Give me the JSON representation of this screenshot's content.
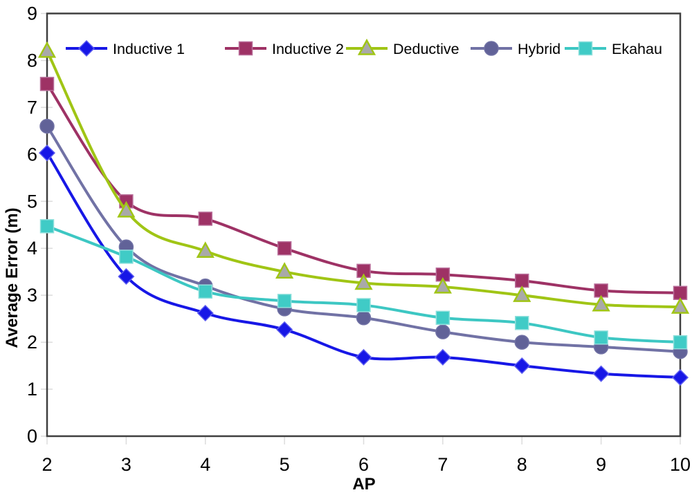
{
  "window": {
    "background": "#FFFFFF"
  },
  "chart_data": {
    "type": "line",
    "title": "",
    "xlabel": "AP",
    "ylabel": "Average Error (m)",
    "x": [
      2,
      3,
      4,
      5,
      6,
      7,
      8,
      9,
      10
    ],
    "xlim": [
      2,
      10
    ],
    "ylim": [
      0,
      9
    ],
    "xticks": [
      2,
      3,
      4,
      5,
      6,
      7,
      8,
      9,
      10
    ],
    "yticks": [
      0,
      1,
      2,
      3,
      4,
      5,
      6,
      7,
      8,
      9
    ],
    "grid": false,
    "legend_position": "top-inside",
    "axis_color": "#3F3F3F",
    "tick_color": "#DCDCDC",
    "line_width": 4,
    "series": [
      {
        "name": "Inductive 1",
        "color": "#1717E6",
        "marker": "diamond",
        "marker_fill": "#1717E6",
        "marker_stroke": "#5C5CF0",
        "values": [
          6.03,
          3.4,
          2.62,
          2.27,
          1.68,
          1.68,
          1.5,
          1.33,
          1.25
        ]
      },
      {
        "name": "Inductive 2",
        "color": "#9E3265",
        "marker": "square",
        "marker_fill": "#9E3265",
        "marker_stroke": "#B96E9A",
        "values": [
          7.5,
          5.0,
          4.63,
          4.0,
          3.52,
          3.44,
          3.31,
          3.1,
          3.05
        ]
      },
      {
        "name": "Deductive",
        "color": "#A0C515",
        "marker": "triangle",
        "marker_fill": "#A9A9A9",
        "marker_stroke": "#A0C515",
        "values": [
          8.2,
          4.8,
          3.94,
          3.5,
          3.26,
          3.18,
          3.0,
          2.8,
          2.75
        ]
      },
      {
        "name": "Hybrid",
        "color": "#7172A5",
        "marker": "circle",
        "marker_fill": "#616298",
        "marker_stroke": "#7172A5",
        "values": [
          6.6,
          4.03,
          3.2,
          2.71,
          2.52,
          2.22,
          2.0,
          1.9,
          1.8
        ]
      },
      {
        "name": "Ekahau",
        "color": "#3DC7C3",
        "marker": "square",
        "marker_fill": "#40CBC6",
        "marker_stroke": "#8FE0DC",
        "values": [
          4.47,
          3.82,
          3.08,
          2.88,
          2.79,
          2.52,
          2.41,
          2.1,
          2.0
        ]
      }
    ]
  }
}
